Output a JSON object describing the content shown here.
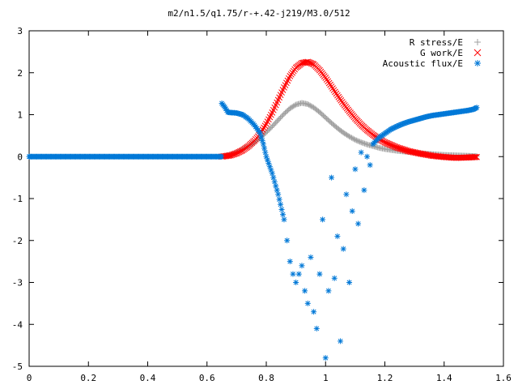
{
  "chart_data": {
    "type": "scatter",
    "title": "m2/n1.5/q1.75/r-+.42-j219/M3.0/512",
    "xlim": [
      0,
      1.6
    ],
    "ylim": [
      -5,
      3
    ],
    "xticks": [
      "0",
      "0.2",
      "0.4",
      "0.6",
      "0.8",
      "1",
      "1.2",
      "1.4",
      "1.6"
    ],
    "yticks": [
      "3",
      "2",
      "1",
      "0",
      "-1",
      "-2",
      "-3",
      "-4",
      "-5"
    ],
    "legend_position": "top-right",
    "grid": false,
    "series": [
      {
        "name": "R stress/E",
        "marker": "plus",
        "color": "#a0a0a0",
        "points": [
          [
            0.65,
            0.0
          ],
          [
            0.68,
            0.05
          ],
          [
            0.7,
            0.1
          ],
          [
            0.72,
            0.17
          ],
          [
            0.74,
            0.25
          ],
          [
            0.76,
            0.34
          ],
          [
            0.78,
            0.45
          ],
          [
            0.8,
            0.58
          ],
          [
            0.82,
            0.72
          ],
          [
            0.84,
            0.87
          ],
          [
            0.86,
            1.02
          ],
          [
            0.88,
            1.15
          ],
          [
            0.9,
            1.24
          ],
          [
            0.92,
            1.28
          ],
          [
            0.94,
            1.25
          ],
          [
            0.96,
            1.17
          ],
          [
            0.98,
            1.06
          ],
          [
            1.0,
            0.93
          ],
          [
            1.02,
            0.8
          ],
          [
            1.04,
            0.68
          ],
          [
            1.06,
            0.57
          ],
          [
            1.08,
            0.48
          ],
          [
            1.1,
            0.4
          ],
          [
            1.12,
            0.34
          ],
          [
            1.14,
            0.29
          ],
          [
            1.16,
            0.25
          ],
          [
            1.18,
            0.21
          ],
          [
            1.2,
            0.18
          ],
          [
            1.24,
            0.14
          ],
          [
            1.28,
            0.11
          ],
          [
            1.32,
            0.08
          ],
          [
            1.36,
            0.06
          ],
          [
            1.4,
            0.04
          ],
          [
            1.44,
            0.03
          ],
          [
            1.48,
            0.02
          ],
          [
            1.51,
            0.01
          ]
        ]
      },
      {
        "name": "G work/E",
        "marker": "cross",
        "color": "#ff0000",
        "points": [
          [
            0.65,
            0.0
          ],
          [
            0.68,
            0.03
          ],
          [
            0.7,
            0.08
          ],
          [
            0.72,
            0.15
          ],
          [
            0.74,
            0.25
          ],
          [
            0.76,
            0.38
          ],
          [
            0.78,
            0.55
          ],
          [
            0.8,
            0.78
          ],
          [
            0.82,
            1.05
          ],
          [
            0.84,
            1.35
          ],
          [
            0.86,
            1.65
          ],
          [
            0.88,
            1.92
          ],
          [
            0.9,
            2.12
          ],
          [
            0.92,
            2.23
          ],
          [
            0.94,
            2.26
          ],
          [
            0.96,
            2.2
          ],
          [
            0.98,
            2.06
          ],
          [
            1.0,
            1.88
          ],
          [
            1.02,
            1.67
          ],
          [
            1.04,
            1.46
          ],
          [
            1.06,
            1.26
          ],
          [
            1.08,
            1.08
          ],
          [
            1.1,
            0.91
          ],
          [
            1.12,
            0.76
          ],
          [
            1.14,
            0.63
          ],
          [
            1.16,
            0.52
          ],
          [
            1.18,
            0.42
          ],
          [
            1.2,
            0.34
          ],
          [
            1.24,
            0.22
          ],
          [
            1.28,
            0.13
          ],
          [
            1.32,
            0.07
          ],
          [
            1.36,
            0.02
          ],
          [
            1.4,
            -0.01
          ],
          [
            1.44,
            -0.03
          ],
          [
            1.48,
            -0.02
          ],
          [
            1.51,
            -0.01
          ]
        ]
      },
      {
        "name": "Acoustic flux/E",
        "marker": "star",
        "color": "#0078d7",
        "flat_segment": [
          0.0,
          0.65,
          0.0
        ],
        "points": [
          [
            0.65,
            1.27
          ],
          [
            0.66,
            1.18
          ],
          [
            0.67,
            1.06
          ],
          [
            0.68,
            1.05
          ],
          [
            0.7,
            1.04
          ],
          [
            0.72,
            1.0
          ],
          [
            0.74,
            0.9
          ],
          [
            0.76,
            0.75
          ],
          [
            0.78,
            0.55
          ],
          [
            0.79,
            0.3
          ],
          [
            0.8,
            0.0
          ],
          [
            0.82,
            -0.4
          ],
          [
            0.84,
            -0.9
          ],
          [
            0.86,
            -1.5
          ],
          [
            0.87,
            -2.0
          ],
          [
            0.88,
            -2.5
          ],
          [
            0.89,
            -2.8
          ],
          [
            0.9,
            -3.0
          ],
          [
            0.91,
            -2.8
          ],
          [
            0.92,
            -2.6
          ],
          [
            0.93,
            -3.2
          ],
          [
            0.94,
            -3.5
          ],
          [
            0.95,
            -2.4
          ],
          [
            0.96,
            -3.7
          ],
          [
            0.97,
            -4.1
          ],
          [
            0.98,
            -2.8
          ],
          [
            0.99,
            -1.5
          ],
          [
            1.0,
            -4.8
          ],
          [
            1.01,
            -3.2
          ],
          [
            1.02,
            -0.5
          ],
          [
            1.03,
            -2.9
          ],
          [
            1.04,
            -1.9
          ],
          [
            1.05,
            -4.4
          ],
          [
            1.06,
            -2.2
          ],
          [
            1.07,
            -0.9
          ],
          [
            1.08,
            -3.0
          ],
          [
            1.09,
            -1.3
          ],
          [
            1.1,
            -0.3
          ],
          [
            1.11,
            -1.6
          ],
          [
            1.12,
            0.1
          ],
          [
            1.13,
            -0.8
          ],
          [
            1.14,
            0.0
          ],
          [
            1.15,
            -0.2
          ],
          [
            1.16,
            0.3
          ],
          [
            1.18,
            0.45
          ],
          [
            1.2,
            0.55
          ],
          [
            1.22,
            0.65
          ],
          [
            1.24,
            0.72
          ],
          [
            1.26,
            0.78
          ],
          [
            1.28,
            0.83
          ],
          [
            1.3,
            0.87
          ],
          [
            1.32,
            0.91
          ],
          [
            1.34,
            0.95
          ],
          [
            1.36,
            0.98
          ],
          [
            1.38,
            1.0
          ],
          [
            1.4,
            1.02
          ],
          [
            1.42,
            1.04
          ],
          [
            1.44,
            1.06
          ],
          [
            1.46,
            1.08
          ],
          [
            1.48,
            1.1
          ],
          [
            1.5,
            1.13
          ],
          [
            1.51,
            1.17
          ]
        ]
      }
    ]
  }
}
